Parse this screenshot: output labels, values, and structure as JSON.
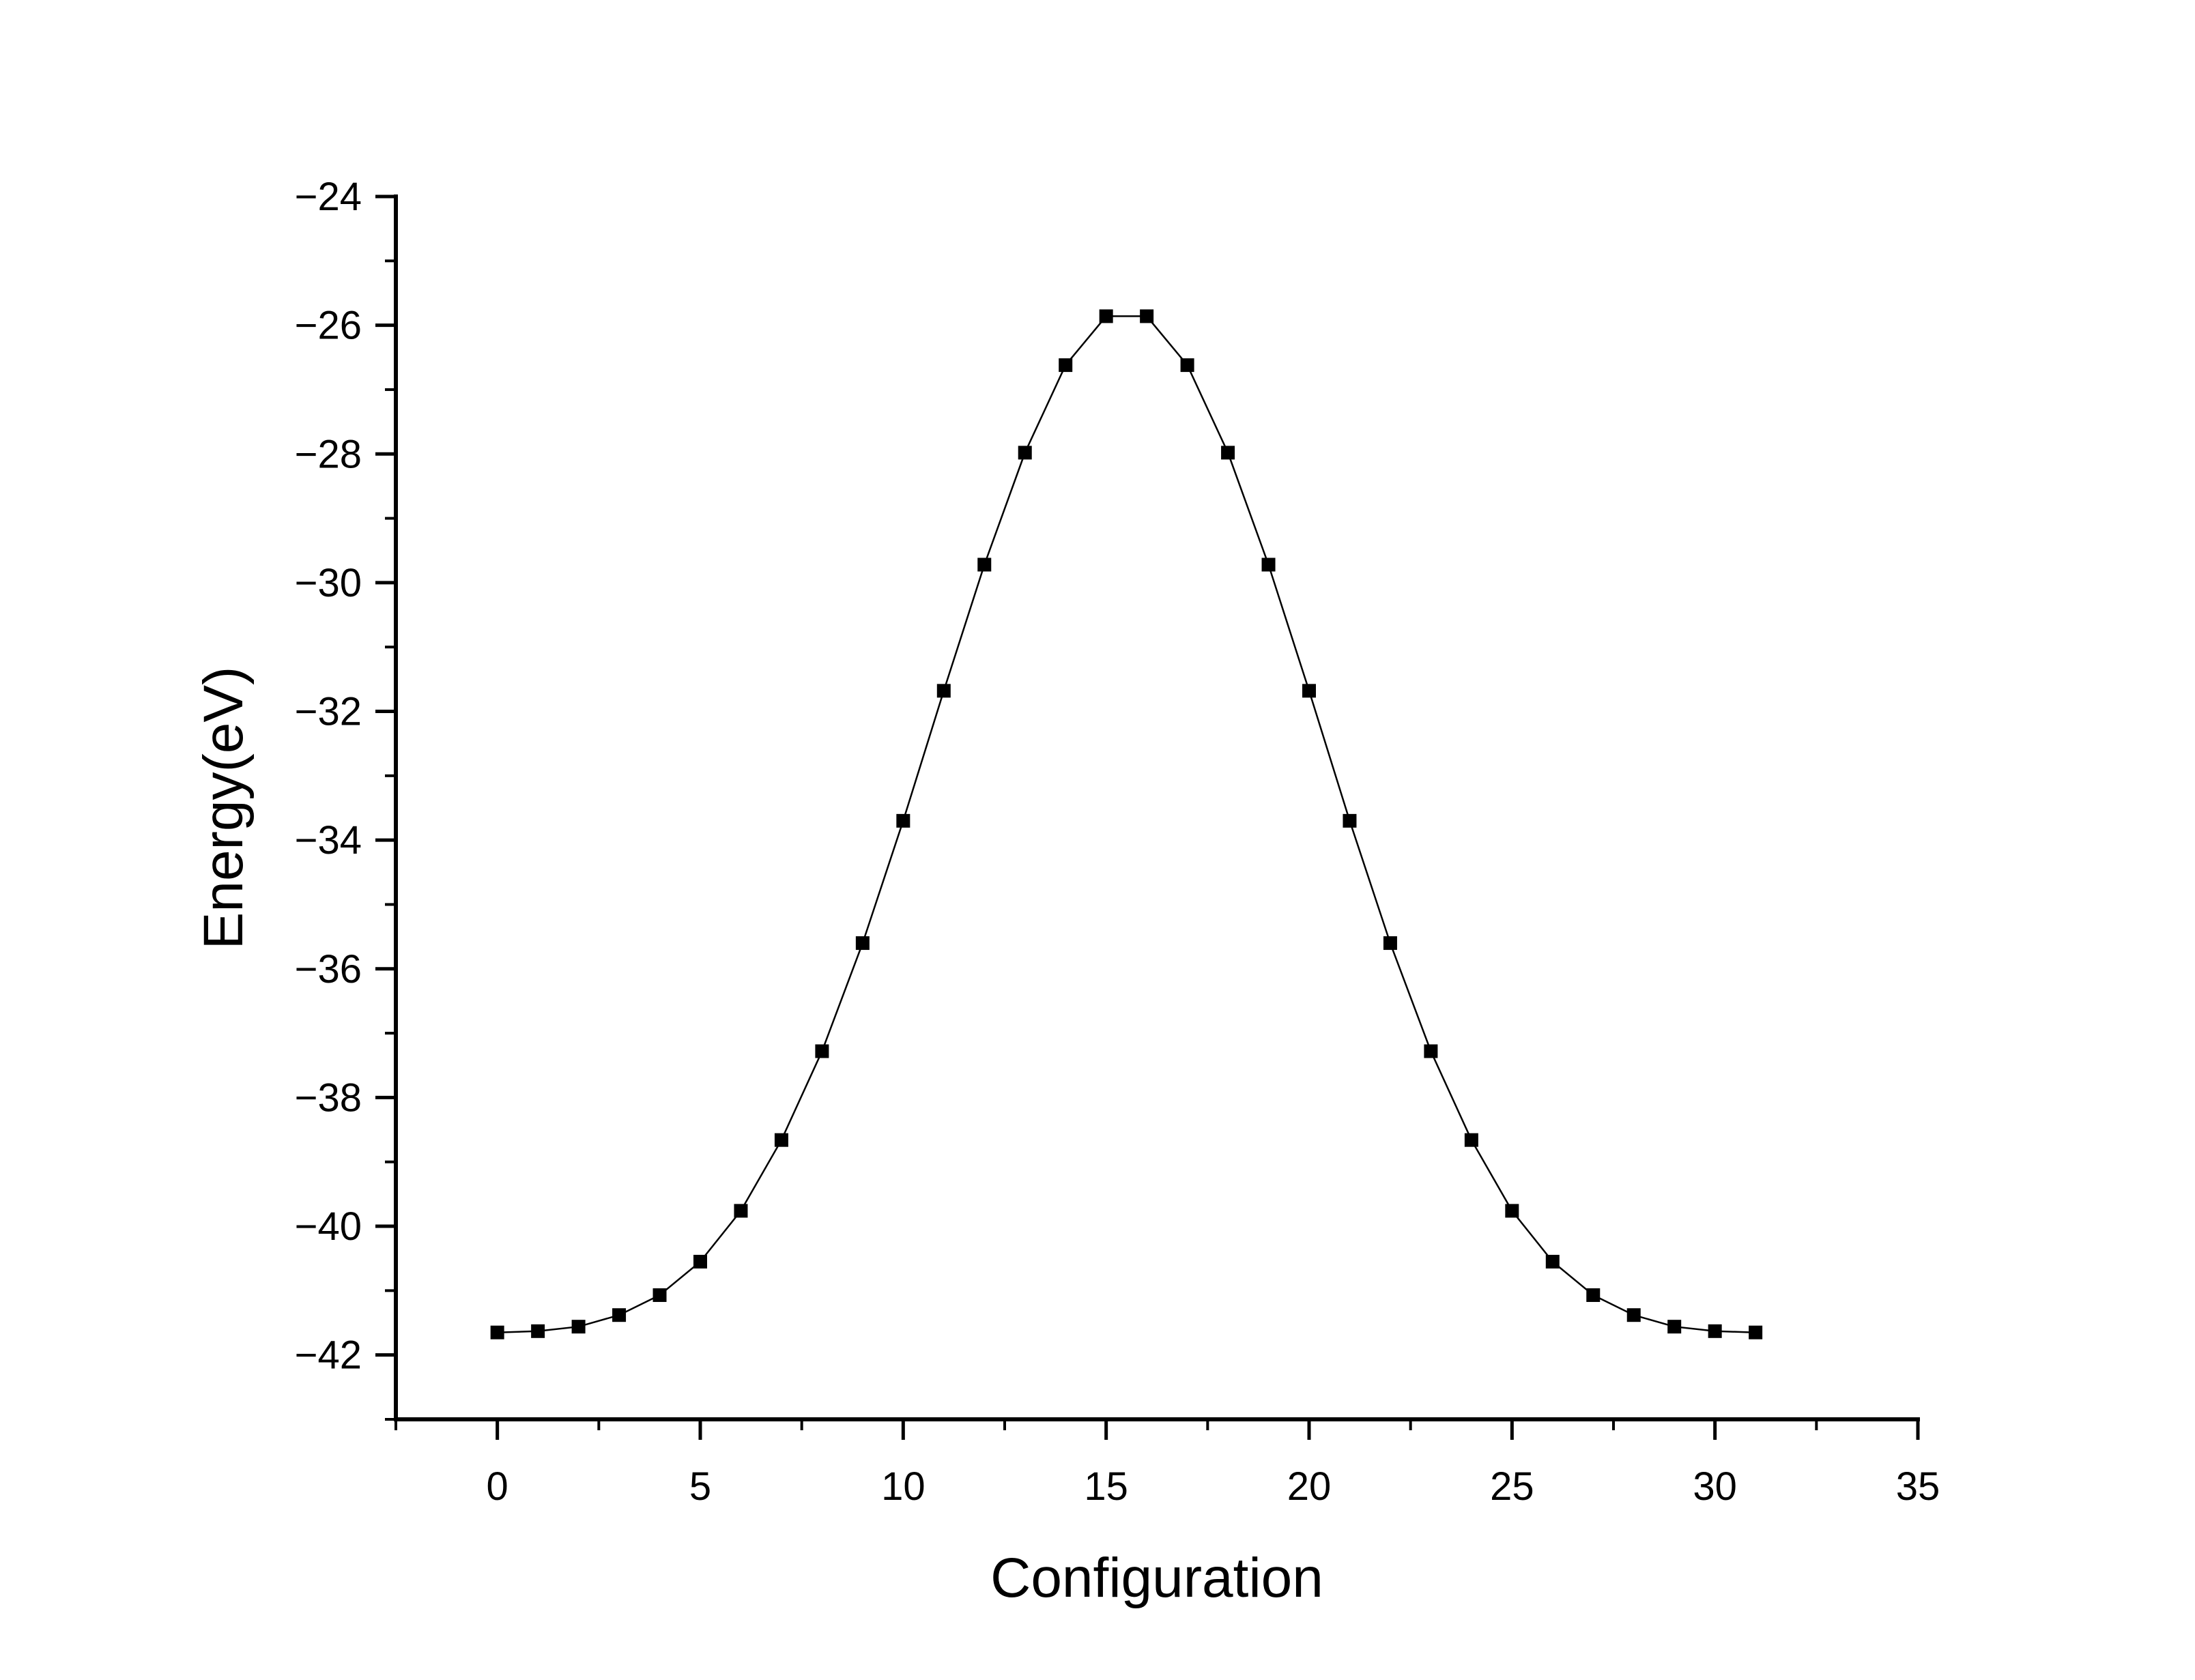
{
  "chart_data": {
    "type": "line",
    "xlabel": "Configuration",
    "ylabel": "Energy(eV)",
    "xlim": [
      -2.5,
      35
    ],
    "ylim": [
      -43,
      -24
    ],
    "xticks": [
      0,
      5,
      10,
      15,
      20,
      25,
      30,
      35
    ],
    "yticks": [
      -42,
      -40,
      -38,
      -36,
      -34,
      -32,
      -30,
      -28,
      -26,
      -24
    ],
    "grid": false,
    "marker": "square",
    "line_color": "#000000",
    "marker_color": "#000000",
    "series": [
      {
        "x": [
          0,
          1,
          2,
          3,
          4,
          5,
          6,
          7,
          8,
          9,
          10,
          11,
          12,
          13,
          14,
          15,
          16,
          17,
          18,
          19,
          20,
          21,
          22,
          23,
          24,
          25,
          26,
          27,
          28,
          29,
          30,
          31
        ],
        "values": [
          -41.65,
          -41.63,
          -41.56,
          -41.38,
          -41.07,
          -40.55,
          -39.76,
          -38.66,
          -37.28,
          -35.6,
          -33.7,
          -31.68,
          -29.72,
          -27.98,
          -26.62,
          -25.86,
          -25.86,
          -26.62,
          -27.98,
          -29.72,
          -31.68,
          -33.7,
          -35.6,
          -37.28,
          -38.66,
          -39.76,
          -40.55,
          -41.07,
          -41.38,
          -41.56,
          -41.63,
          -41.65
        ]
      }
    ]
  }
}
